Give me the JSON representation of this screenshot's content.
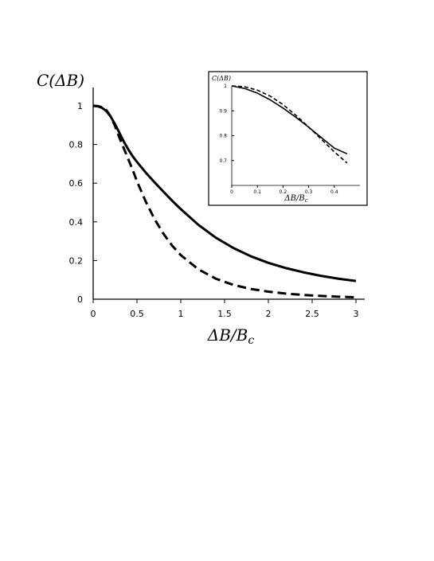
{
  "chart_data": [
    {
      "type": "line",
      "title": "",
      "xlabel": "ΔB/B_c",
      "ylabel": "C(ΔB)",
      "xlim": [
        0,
        3
      ],
      "ylim": [
        0,
        1
      ],
      "x_ticks": [
        "0",
        "0.5",
        "1",
        "1.5",
        "2",
        "2.5",
        "3"
      ],
      "y_ticks": [
        "0",
        "0.2",
        "0.4",
        "0.6",
        "0.8",
        "1"
      ],
      "grid": false,
      "series": [
        {
          "style": "solid",
          "color": "#000000",
          "x": [
            0,
            0.05,
            0.1,
            0.15,
            0.2,
            0.25,
            0.3,
            0.35,
            0.4,
            0.45,
            0.5,
            0.6,
            0.7,
            0.8,
            0.9,
            1.0,
            1.2,
            1.4,
            1.6,
            1.8,
            2.0,
            2.2,
            2.4,
            2.6,
            2.8,
            3.0
          ],
          "y": [
            1.0,
            0.998,
            0.99,
            0.973,
            0.944,
            0.905,
            0.86,
            0.815,
            0.775,
            0.74,
            0.71,
            0.655,
            0.605,
            0.557,
            0.51,
            0.466,
            0.385,
            0.318,
            0.265,
            0.222,
            0.188,
            0.161,
            0.139,
            0.121,
            0.106,
            0.094
          ]
        },
        {
          "style": "dashed",
          "color": "#000000",
          "x": [
            0,
            0.05,
            0.1,
            0.15,
            0.2,
            0.25,
            0.3,
            0.35,
            0.4,
            0.45,
            0.5,
            0.6,
            0.7,
            0.8,
            0.9,
            1.0,
            1.2,
            1.4,
            1.6,
            1.8,
            2.0,
            2.2,
            2.4,
            2.6,
            2.8,
            3.0
          ],
          "y": [
            1.0,
            0.999,
            0.993,
            0.978,
            0.945,
            0.895,
            0.835,
            0.78,
            0.725,
            0.67,
            0.61,
            0.505,
            0.415,
            0.34,
            0.278,
            0.228,
            0.155,
            0.106,
            0.074,
            0.053,
            0.039,
            0.029,
            0.022,
            0.017,
            0.013,
            0.01
          ]
        }
      ]
    },
    {
      "type": "line",
      "title": "",
      "xlabel": "ΔB/B_c",
      "ylabel": "C(ΔB)",
      "xlim": [
        0,
        0.5
      ],
      "ylim": [
        0.6,
        1
      ],
      "x_ticks": [
        "0",
        "0.1",
        "0.2",
        "0.3",
        "0.4"
      ],
      "y_ticks": [
        "0.7",
        "0.8",
        "0.9",
        "1"
      ],
      "grid": false,
      "series": [
        {
          "style": "solid",
          "color": "#000000",
          "x": [
            0,
            0.05,
            0.1,
            0.15,
            0.2,
            0.25,
            0.3,
            0.35,
            0.4,
            0.45
          ],
          "y": [
            1.0,
            0.99,
            0.971,
            0.944,
            0.911,
            0.874,
            0.834,
            0.792,
            0.75,
            0.727
          ]
        },
        {
          "style": "dashed",
          "color": "#000000",
          "x": [
            0,
            0.05,
            0.1,
            0.15,
            0.2,
            0.25,
            0.3,
            0.35,
            0.4,
            0.45
          ],
          "y": [
            1.0,
            0.997,
            0.983,
            0.959,
            0.925,
            0.882,
            0.835,
            0.785,
            0.735,
            0.69
          ]
        }
      ]
    }
  ]
}
